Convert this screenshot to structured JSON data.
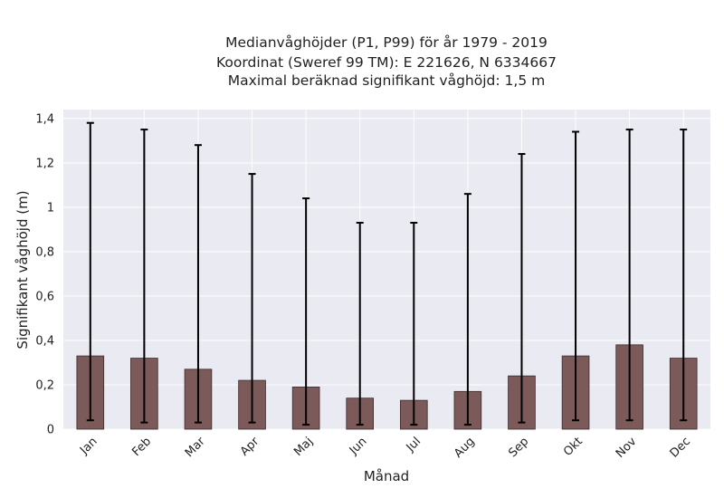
{
  "chart_data": {
    "type": "bar",
    "title_lines": [
      "Medianvåghöjder (P1, P99) för år 1979 - 2019",
      "Koordinat (Sweref 99 TM): E 221626, N 6334667",
      "Maximal beräknad signifikant våghöjd: 1,5 m"
    ],
    "xlabel": "Månad",
    "ylabel": "Signifikant våghöjd (m)",
    "categories": [
      "Jan",
      "Feb",
      "Mar",
      "Apr",
      "Maj",
      "Jun",
      "Jul",
      "Aug",
      "Sep",
      "Okt",
      "Nov",
      "Dec"
    ],
    "values": [
      0.33,
      0.32,
      0.27,
      0.22,
      0.19,
      0.14,
      0.13,
      0.17,
      0.24,
      0.33,
      0.38,
      0.32
    ],
    "error_low": [
      0.04,
      0.03,
      0.03,
      0.03,
      0.02,
      0.02,
      0.02,
      0.02,
      0.03,
      0.04,
      0.04,
      0.04
    ],
    "error_high": [
      1.38,
      1.35,
      1.28,
      1.15,
      1.04,
      0.93,
      0.93,
      1.06,
      1.24,
      1.34,
      1.35,
      1.35
    ],
    "ylim": [
      0,
      1.44
    ],
    "yticks": [
      0,
      0.2,
      0.4,
      0.6,
      0.8,
      1.0,
      1.2,
      1.4
    ],
    "ytick_labels": [
      "0",
      "0,2",
      "0,4",
      "0,6",
      "0,8",
      "1",
      "1,2",
      "1,4"
    ],
    "grid": true,
    "colors": {
      "bar": "#7d5a5a",
      "bar_edge": "#3a2a2a",
      "error": "#000000",
      "background": "#eaeaf2",
      "grid": "#ffffff"
    }
  }
}
